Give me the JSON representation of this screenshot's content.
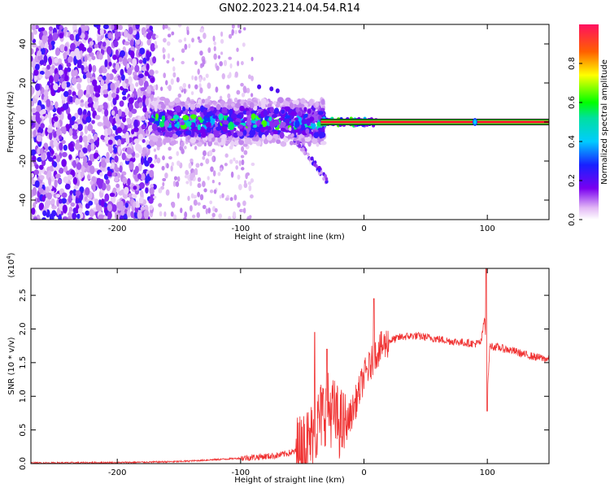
{
  "title": "GN02.2023.214.04.54.R14",
  "chart_data": [
    {
      "type": "heatmap",
      "xlabel": "Height of straight line (km)",
      "ylabel": "Frequency (Hz)",
      "xlim": [
        -270,
        150
      ],
      "ylim": [
        -50,
        50
      ],
      "x_ticks": [
        -200,
        -100,
        0,
        100
      ],
      "x_tick_labels": [
        "-200",
        "-100",
        "0",
        "100"
      ],
      "y_ticks": [
        -40,
        -20,
        0,
        20,
        40
      ],
      "y_tick_labels": [
        "-40",
        "-20",
        "0",
        "20",
        "40"
      ],
      "colorbar": {
        "label": "Normalized spectral amplitude",
        "range": [
          0,
          1
        ],
        "ticks": [
          0,
          0.2,
          0.4,
          0.6,
          0.8
        ],
        "tick_labels": [
          "0.0",
          "0.2",
          "0.4",
          "0.6",
          "0.8"
        ],
        "colormap": "rainbow (white-violet-blue-cyan-green-yellow-red)"
      },
      "description_regions": [
        {
          "x_range": [
            -270,
            -170
          ],
          "freq_range": [
            -50,
            50
          ],
          "amplitude": "low, scattered"
        },
        {
          "x_range": [
            -170,
            -35
          ],
          "freq_range": [
            -10,
            10
          ],
          "amplitude": "medium"
        },
        {
          "x_range": [
            -35,
            150
          ],
          "freq_range": [
            -1,
            1
          ],
          "amplitude": "high, narrow line at 0 Hz"
        }
      ],
      "grid": false
    },
    {
      "type": "line",
      "xlabel": "Height of straight line (km)",
      "ylabel": "SNR (10 * v/v)",
      "y_multiplier": "(x10^4)",
      "xlim": [
        -270,
        150
      ],
      "ylim": [
        0,
        2.9
      ],
      "x_ticks": [
        -200,
        -100,
        0,
        100
      ],
      "x_tick_labels": [
        "-200",
        "-100",
        "0",
        "100"
      ],
      "y_ticks": [
        0,
        0.5,
        1.0,
        1.5,
        2.0,
        2.5
      ],
      "y_tick_labels": [
        "0.0",
        "0.5",
        "1.0",
        "1.5",
        "2.0",
        "2.5"
      ],
      "series_color": "#f03232",
      "envelope": {
        "x": [
          -270,
          -200,
          -150,
          -100,
          -70,
          -50,
          -40,
          -35,
          -30,
          -25,
          -20,
          -15,
          -10,
          -5,
          0,
          5,
          10,
          20,
          30,
          40,
          50,
          60,
          70,
          80,
          90,
          95,
          98,
          100,
          102,
          110,
          120,
          130,
          140,
          150
        ],
        "y": [
          0.01,
          0.015,
          0.03,
          0.08,
          0.12,
          0.2,
          0.45,
          0.7,
          0.85,
          0.75,
          0.6,
          0.55,
          0.75,
          1.0,
          1.3,
          1.45,
          1.65,
          1.82,
          1.88,
          1.9,
          1.88,
          1.85,
          1.82,
          1.8,
          1.78,
          1.8,
          2.2,
          1.0,
          1.75,
          1.72,
          1.68,
          1.62,
          1.58,
          1.55
        ]
      },
      "spikes": [
        {
          "x": -40,
          "y": 1.95
        },
        {
          "x": -30,
          "y": 1.7
        },
        {
          "x": 8,
          "y": 2.45
        },
        {
          "x": 99,
          "y": 2.9
        },
        {
          "x": 100,
          "y": 0.78
        }
      ],
      "grid": false
    }
  ]
}
